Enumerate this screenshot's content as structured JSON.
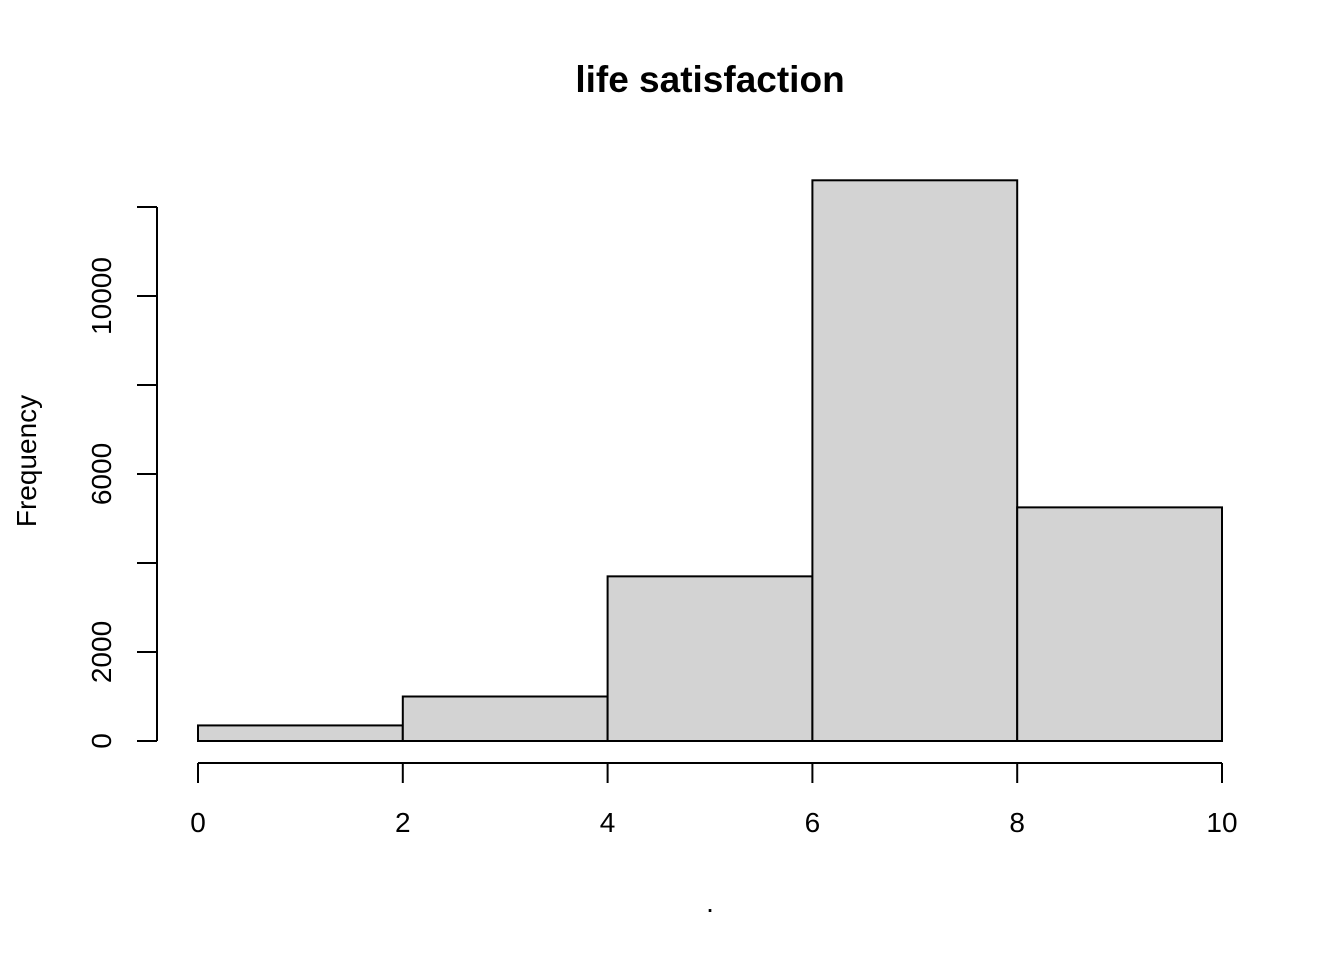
{
  "chart_data": {
    "type": "bar",
    "title": "life satisfaction",
    "xlabel": ".",
    "ylabel": "Frequency",
    "bins": [
      {
        "from": 0,
        "to": 2,
        "count": 350
      },
      {
        "from": 2,
        "to": 4,
        "count": 1000
      },
      {
        "from": 4,
        "to": 6,
        "count": 3700
      },
      {
        "from": 6,
        "to": 8,
        "count": 12600
      },
      {
        "from": 8,
        "to": 10,
        "count": 5250
      }
    ],
    "xlim": [
      0,
      10
    ],
    "ylim": [
      0,
      12000
    ],
    "x_ticks": [
      0,
      2,
      4,
      6,
      8,
      10
    ],
    "x_tick_labels": [
      "0",
      "2",
      "4",
      "6",
      "8",
      "10"
    ],
    "y_ticks": [
      0,
      2000,
      4000,
      6000,
      8000,
      10000,
      12000
    ],
    "y_tick_labels": [
      "0",
      "2000",
      "",
      "6000",
      "",
      "10000",
      ""
    ],
    "grid": false,
    "legend": "none",
    "colors": {
      "bar_fill": "#d3d3d3",
      "bar_stroke": "#000000",
      "axis": "#000000"
    }
  }
}
